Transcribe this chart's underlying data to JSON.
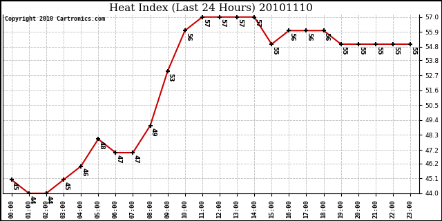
{
  "title": "Heat Index (Last 24 Hours) 20101110",
  "copyright": "Copyright 2010 Cartronics.com",
  "x_labels": [
    "00:00",
    "01:00",
    "02:00",
    "03:00",
    "04:00",
    "05:00",
    "06:00",
    "07:00",
    "08:00",
    "09:00",
    "10:00",
    "11:00",
    "12:00",
    "13:00",
    "14:00",
    "15:00",
    "16:00",
    "17:00",
    "18:00",
    "19:00",
    "20:00",
    "21:00",
    "22:00",
    "23:00"
  ],
  "y_values": [
    45,
    44,
    44,
    45,
    46,
    48,
    47,
    47,
    49,
    53,
    56,
    57,
    57,
    57,
    57,
    55,
    56,
    56,
    56,
    55,
    55,
    55,
    55,
    55
  ],
  "ylim_min": 44.0,
  "ylim_max": 57.2,
  "line_color": "#cc0000",
  "marker_color": "#000000",
  "background_color": "#ffffff",
  "grid_color": "#bbbbbb",
  "title_fontsize": 11,
  "tick_fontsize": 6.5,
  "label_fontsize": 6.5,
  "y_ticks": [
    44.0,
    45.1,
    46.2,
    47.2,
    48.3,
    49.4,
    50.5,
    51.6,
    52.7,
    53.8,
    54.8,
    55.9,
    57.0
  ]
}
